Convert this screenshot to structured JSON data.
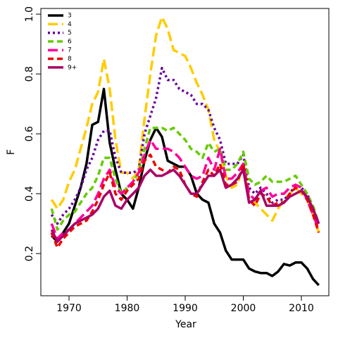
{
  "chart_data": {
    "type": "line",
    "x_label": "Year",
    "y_label": "F",
    "x": [
      1967,
      1968,
      1969,
      1970,
      1971,
      1972,
      1973,
      1974,
      1975,
      1976,
      1977,
      1978,
      1979,
      1980,
      1981,
      1982,
      1983,
      1984,
      1985,
      1986,
      1987,
      1988,
      1989,
      1990,
      1991,
      1992,
      1993,
      1994,
      1995,
      1996,
      1997,
      1998,
      1999,
      2000,
      2001,
      2002,
      2003,
      2004,
      2005,
      2006,
      2007,
      2008,
      2009,
      2010,
      2011,
      2012,
      2013
    ],
    "xlim": [
      1965.15,
      2014.73
    ],
    "xticks": [
      1970,
      1980,
      1990,
      2000,
      2010
    ],
    "ylim": [
      0.059,
      1.019
    ],
    "yticks": [
      0.2,
      0.4,
      0.6,
      0.8,
      {
        "value": 1,
        "label": "1.0"
      }
    ],
    "legend": "top-left",
    "series": [
      {
        "name": "3",
        "color": "#000000",
        "linestyle": "solid",
        "values": [
          0.26,
          0.24,
          0.27,
          0.3,
          0.36,
          0.42,
          0.5,
          0.63,
          0.64,
          0.75,
          0.57,
          0.48,
          0.4,
          0.38,
          0.35,
          0.42,
          0.51,
          0.58,
          0.62,
          0.59,
          0.51,
          0.5,
          0.49,
          0.49,
          0.46,
          0.4,
          0.38,
          0.37,
          0.3,
          0.27,
          0.21,
          0.18,
          0.18,
          0.18,
          0.15,
          0.14,
          0.135,
          0.135,
          0.125,
          0.14,
          0.165,
          0.16,
          0.17,
          0.17,
          0.15,
          0.115,
          0.094
        ]
      },
      {
        "name": "4",
        "color": "#ffcc00",
        "linestyle": "longdash",
        "values": [
          0.38,
          0.35,
          0.38,
          0.44,
          0.48,
          0.55,
          0.62,
          0.7,
          0.74,
          0.85,
          0.75,
          0.58,
          0.47,
          0.47,
          0.45,
          0.48,
          0.65,
          0.8,
          0.93,
          0.99,
          0.95,
          0.88,
          0.87,
          0.86,
          0.82,
          0.77,
          0.73,
          0.68,
          0.58,
          0.54,
          0.46,
          0.42,
          0.43,
          0.5,
          0.38,
          0.37,
          0.35,
          0.33,
          0.31,
          0.35,
          0.38,
          0.4,
          0.42,
          0.4,
          0.38,
          0.33,
          0.27
        ]
      },
      {
        "name": "5",
        "color": "#660099",
        "linestyle": "dotted",
        "values": [
          0.33,
          0.3,
          0.33,
          0.35,
          0.38,
          0.42,
          0.48,
          0.52,
          0.58,
          0.61,
          0.61,
          0.52,
          0.47,
          0.47,
          0.47,
          0.48,
          0.6,
          0.66,
          0.72,
          0.82,
          0.78,
          0.78,
          0.75,
          0.74,
          0.73,
          0.7,
          0.7,
          0.68,
          0.62,
          0.58,
          0.5,
          0.5,
          0.5,
          0.53,
          0.42,
          0.4,
          0.42,
          0.4,
          0.37,
          0.38,
          0.38,
          0.4,
          0.43,
          0.42,
          0.4,
          0.35,
          0.3
        ]
      },
      {
        "name": "6",
        "color": "#66cc00",
        "linestyle": "dashed",
        "values": [
          0.35,
          0.28,
          0.31,
          0.33,
          0.34,
          0.37,
          0.4,
          0.42,
          0.46,
          0.52,
          0.52,
          0.45,
          0.4,
          0.42,
          0.44,
          0.47,
          0.55,
          0.62,
          0.62,
          0.62,
          0.61,
          0.62,
          0.6,
          0.58,
          0.55,
          0.54,
          0.52,
          0.57,
          0.54,
          0.55,
          0.48,
          0.48,
          0.5,
          0.54,
          0.45,
          0.43,
          0.44,
          0.46,
          0.44,
          0.44,
          0.44,
          0.45,
          0.46,
          0.43,
          0.4,
          0.36,
          0.3
        ]
      },
      {
        "name": "7",
        "color": "#ff0099",
        "linestyle": "longdash",
        "values": [
          0.3,
          0.25,
          0.27,
          0.28,
          0.3,
          0.32,
          0.34,
          0.36,
          0.4,
          0.45,
          0.48,
          0.42,
          0.4,
          0.42,
          0.44,
          0.47,
          0.53,
          0.58,
          0.55,
          0.55,
          0.55,
          0.54,
          0.52,
          0.49,
          0.46,
          0.45,
          0.46,
          0.52,
          0.48,
          0.55,
          0.45,
          0.45,
          0.47,
          0.5,
          0.4,
          0.38,
          0.41,
          0.42,
          0.39,
          0.4,
          0.4,
          0.42,
          0.43,
          0.42,
          0.38,
          0.33,
          0.28
        ]
      },
      {
        "name": "8",
        "color": "#ee0000",
        "linestyle": "dashed",
        "values": [
          0.27,
          0.22,
          0.25,
          0.27,
          0.29,
          0.3,
          0.31,
          0.34,
          0.38,
          0.43,
          0.47,
          0.4,
          0.38,
          0.41,
          0.43,
          0.45,
          0.51,
          0.53,
          0.49,
          0.48,
          0.47,
          0.49,
          0.48,
          0.43,
          0.4,
          0.39,
          0.44,
          0.48,
          0.46,
          0.5,
          0.43,
          0.43,
          0.44,
          0.5,
          0.38,
          0.36,
          0.4,
          0.39,
          0.36,
          0.37,
          0.37,
          0.4,
          0.42,
          0.41,
          0.38,
          0.33,
          0.27
        ]
      },
      {
        "name": "9+",
        "color": "#aa0066",
        "linestyle": "solid",
        "values": [
          0.28,
          0.24,
          0.26,
          0.28,
          0.3,
          0.31,
          0.32,
          0.33,
          0.35,
          0.39,
          0.41,
          0.36,
          0.35,
          0.38,
          0.4,
          0.42,
          0.46,
          0.48,
          0.46,
          0.46,
          0.47,
          0.48,
          0.46,
          0.43,
          0.4,
          0.4,
          0.43,
          0.46,
          0.46,
          0.48,
          0.42,
          0.43,
          0.45,
          0.48,
          0.37,
          0.38,
          0.41,
          0.36,
          0.36,
          0.36,
          0.37,
          0.39,
          0.4,
          0.41,
          0.39,
          0.35,
          0.3
        ]
      }
    ]
  }
}
